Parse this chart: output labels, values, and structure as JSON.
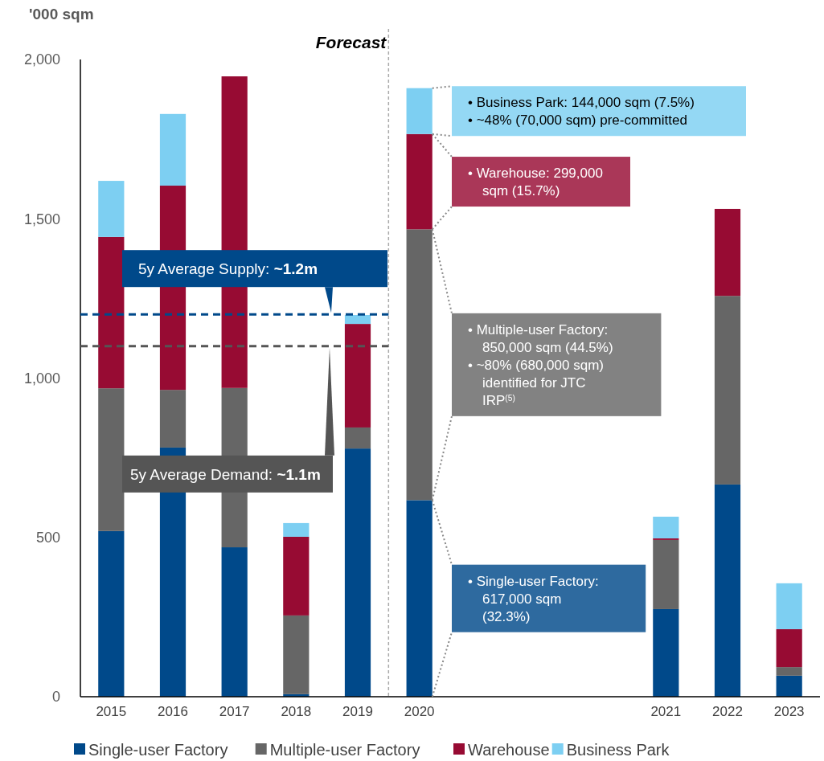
{
  "chart_data": {
    "type": "bar",
    "stacked": true,
    "ylabel": "'000 sqm",
    "categories": [
      "2015",
      "2016",
      "2017",
      "2018",
      "2019",
      "2020",
      null,
      null,
      null,
      "2021",
      "2022",
      "2023"
    ],
    "series": [
      {
        "name": "Single-user Factory",
        "color": "#00498a",
        "values": [
          520,
          782,
          469,
          8,
          779,
          617,
          null,
          null,
          null,
          275,
          666,
          66
        ]
      },
      {
        "name": "Multiple-user Factory",
        "color": "#666666",
        "values": [
          448,
          181,
          500,
          247,
          66,
          850,
          null,
          null,
          null,
          217,
          592,
          27
        ]
      },
      {
        "name": "Warehouse",
        "color": "#970b33",
        "values": [
          475,
          641,
          978,
          247,
          325,
          299,
          null,
          null,
          null,
          5,
          273,
          119
        ]
      },
      {
        "name": "Business Park",
        "color": "#7dcff2",
        "values": [
          176,
          225,
          0,
          43,
          28,
          144,
          null,
          null,
          null,
          68,
          null,
          144
        ]
      }
    ],
    "ylim": [
      0,
      2000
    ],
    "yticks": [
      0,
      {
        "value": 500,
        "label": "500"
      },
      {
        "value": 1000,
        "label": "1,000"
      },
      {
        "value": 1500,
        "label": "1,500"
      },
      {
        "value": 2000,
        "label": "2,000"
      }
    ],
    "grid": false,
    "legend": "bottom",
    "ref_lines": [
      {
        "axis": "y",
        "value": 1200,
        "label": "5y Average Supply: ~1.2m",
        "color": "#00498a",
        "line_style": "dashed"
      },
      {
        "axis": "y",
        "value": 1100,
        "label": "5y Average Demand: ~1.1m",
        "color": "#555555",
        "line_style": "dashed"
      }
    ],
    "annotations": [
      "Forecast",
      "• Business Park: 144,000 sqm (7.5%)\n• ~48% (70,000 sqm) pre-committed",
      "• Warehouse: 299,000\nsqm (15.7%)",
      "• Multiple-user Factory:\n850,000 sqm (44.5%)\n• ~80% (680,000 sqm)\nidentified for JTC\nIRP$^{(5)}$",
      "• Single-user Factory:\n617,000 sqm\n(32.3%)"
    ]
  }
}
